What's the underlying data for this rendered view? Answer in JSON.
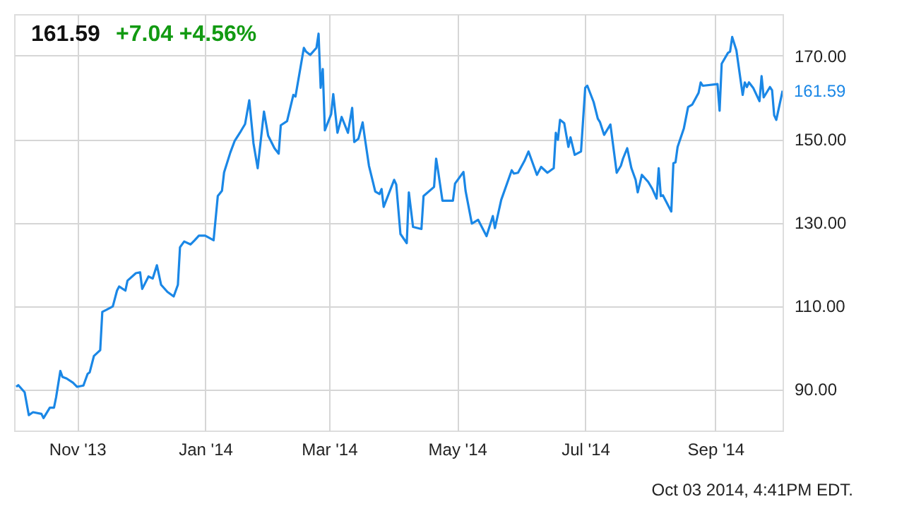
{
  "chart_data": {
    "type": "line",
    "title": "161.59",
    "subtitle": "+7.04 +4.56%",
    "x": [
      "2013-10-03",
      "2013-10-04",
      "2013-10-07",
      "2013-10-09",
      "2013-10-11",
      "2013-10-15",
      "2013-10-16",
      "2013-10-19",
      "2013-10-21",
      "2013-10-22",
      "2013-10-24",
      "2013-10-25",
      "2013-10-27",
      "2013-10-30",
      "2013-11-01",
      "2013-11-04",
      "2013-11-06",
      "2013-11-07",
      "2013-11-09",
      "2013-11-12",
      "2013-11-13",
      "2013-11-15",
      "2013-11-18",
      "2013-11-20",
      "2013-11-21",
      "2013-11-24",
      "2013-11-25",
      "2013-11-29",
      "2013-12-01",
      "2013-12-02",
      "2013-12-05",
      "2013-12-07",
      "2013-12-09",
      "2013-12-11",
      "2013-12-14",
      "2013-12-17",
      "2013-12-19",
      "2013-12-20",
      "2013-12-22",
      "2013-12-25",
      "2013-12-27",
      "2013-12-29",
      "2014-01-01",
      "2014-01-05",
      "2014-01-07",
      "2014-01-09",
      "2014-01-10",
      "2014-01-13",
      "2014-01-15",
      "2014-01-18",
      "2014-01-20",
      "2014-01-22",
      "2014-01-24",
      "2014-01-26",
      "2014-01-29",
      "2014-01-31",
      "2014-02-03",
      "2014-02-05",
      "2014-02-06",
      "2014-02-09",
      "2014-02-12",
      "2014-02-13",
      "2014-02-17",
      "2014-02-18",
      "2014-02-20",
      "2014-02-23",
      "2014-02-24",
      "2014-02-25",
      "2014-02-26",
      "2014-02-27",
      "2014-03-02",
      "2014-03-03",
      "2014-03-05",
      "2014-03-07",
      "2014-03-10",
      "2014-03-12",
      "2014-03-13",
      "2014-03-15",
      "2014-03-17",
      "2014-03-18",
      "2014-03-20",
      "2014-03-23",
      "2014-03-25",
      "2014-03-26",
      "2014-03-27",
      "2014-04-01",
      "2014-04-02",
      "2014-04-04",
      "2014-04-07",
      "2014-04-08",
      "2014-04-10",
      "2014-04-14",
      "2014-04-15",
      "2014-04-20",
      "2014-04-21",
      "2014-04-22",
      "2014-04-24",
      "2014-04-29",
      "2014-04-30",
      "2014-05-04",
      "2014-05-05",
      "2014-05-08",
      "2014-05-11",
      "2014-05-15",
      "2014-05-18",
      "2014-05-19",
      "2014-05-22",
      "2014-05-27",
      "2014-05-28",
      "2014-05-30",
      "2014-06-02",
      "2014-06-04",
      "2014-06-08",
      "2014-06-10",
      "2014-06-13",
      "2014-06-16",
      "2014-06-17",
      "2014-06-18",
      "2014-06-19",
      "2014-06-21",
      "2014-06-23",
      "2014-06-24",
      "2014-06-26",
      "2014-06-29",
      "2014-07-01",
      "2014-07-02",
      "2014-07-05",
      "2014-07-07",
      "2014-07-08",
      "2014-07-10",
      "2014-07-13",
      "2014-07-16",
      "2014-07-18",
      "2014-07-19",
      "2014-07-21",
      "2014-07-23",
      "2014-07-25",
      "2014-07-26",
      "2014-07-28",
      "2014-07-31",
      "2014-08-02",
      "2014-08-04",
      "2014-08-05",
      "2014-08-06",
      "2014-08-07",
      "2014-08-11",
      "2014-08-12",
      "2014-08-13",
      "2014-08-14",
      "2014-08-17",
      "2014-08-19",
      "2014-08-21",
      "2014-08-24",
      "2014-08-25",
      "2014-08-26",
      "2014-09-02",
      "2014-09-03",
      "2014-09-04",
      "2014-09-07",
      "2014-09-08",
      "2014-09-09",
      "2014-09-11",
      "2014-09-14",
      "2014-09-15",
      "2014-09-16",
      "2014-09-17",
      "2014-09-19",
      "2014-09-22",
      "2014-09-23",
      "2014-09-24",
      "2014-09-27",
      "2014-09-28",
      "2014-09-29",
      "2014-09-30",
      "2014-10-03"
    ],
    "series": [
      {
        "color": "#1a87e6",
        "values": [
          90.5,
          90.9,
          89.2,
          83.7,
          84.4,
          84,
          83,
          85.5,
          85.5,
          88,
          94.3,
          92.9,
          92.5,
          91.5,
          90.5,
          90.8,
          93.6,
          94,
          97.9,
          99.3,
          108.5,
          109,
          109.8,
          113.6,
          114.6,
          113.6,
          116,
          117.8,
          118,
          114,
          117,
          116.5,
          119.7,
          115,
          113.3,
          112.2,
          115,
          124,
          125.4,
          124.7,
          125.7,
          126.8,
          126.8,
          125.7,
          136.3,
          137.6,
          142,
          146.8,
          149.5,
          151.9,
          153.6,
          159.3,
          149,
          143,
          156.6,
          150.8,
          147.8,
          146.5,
          153.3,
          154.3,
          160.6,
          160.2,
          171.9,
          171,
          170.2,
          171.9,
          175.3,
          162.3,
          166.8,
          152.1,
          156,
          160.8,
          151.5,
          155.3,
          151.5,
          157.5,
          149.3,
          150.1,
          154,
          150.4,
          143.6,
          137.4,
          136.8,
          138,
          133.7,
          140.2,
          139.1,
          127.2,
          125,
          137.2,
          128.9,
          128.4,
          136.3,
          138.5,
          145.3,
          142.1,
          135.2,
          135.2,
          139.3,
          142.1,
          137.6,
          129.7,
          130.6,
          126.7,
          131.5,
          128.6,
          135.4,
          142.5,
          141.7,
          141.9,
          144.7,
          147,
          141.4,
          143.3,
          141.9,
          143,
          151.5,
          149.8,
          154.6,
          153.8,
          148.1,
          150.4,
          146.2,
          147,
          162.3,
          162.8,
          158.9,
          154.9,
          154.1,
          151,
          153.5,
          141.9,
          143.6,
          145.3,
          147.8,
          143,
          140.2,
          137.2,
          141.4,
          139.7,
          138,
          135.7,
          143,
          136.3,
          136.5,
          132.6,
          144.2,
          144.4,
          148.1,
          152.6,
          157.7,
          158.3,
          161.1,
          163.6,
          162.8,
          163.2,
          156.8,
          168.1,
          170.7,
          171,
          174.5,
          171.3,
          160.6,
          163.6,
          162.5,
          163.6,
          162.3,
          159.1,
          165.1,
          160,
          162.5,
          161.7,
          155.7,
          154.6,
          161.59
        ]
      }
    ],
    "xlim": [
      "2013-10-02",
      "2014-10-03"
    ],
    "xticks": [
      {
        "value": "2013-11-01",
        "label": "Nov '13"
      },
      {
        "value": "2014-01-01",
        "label": "Jan '14"
      },
      {
        "value": "2014-03-01",
        "label": "Mar '14"
      },
      {
        "value": "2014-05-01",
        "label": "May '14"
      },
      {
        "value": "2014-07-01",
        "label": "Jul '14"
      },
      {
        "value": "2014-09-01",
        "label": "Sep '14"
      }
    ],
    "ylim": [
      80,
      180
    ],
    "yticks": [
      {
        "value": 90,
        "label": "90.00"
      },
      {
        "value": 110,
        "label": "110.00"
      },
      {
        "value": 130,
        "label": "130.00"
      },
      {
        "value": 150,
        "label": "150.00"
      },
      {
        "value": 170,
        "label": "170.00"
      }
    ],
    "grid": true,
    "annotations": [
      {
        "text": "161.59",
        "x": "2014-10-03",
        "y": 161.59
      },
      "Oct 03 2014, 4:41PM EDT."
    ]
  }
}
